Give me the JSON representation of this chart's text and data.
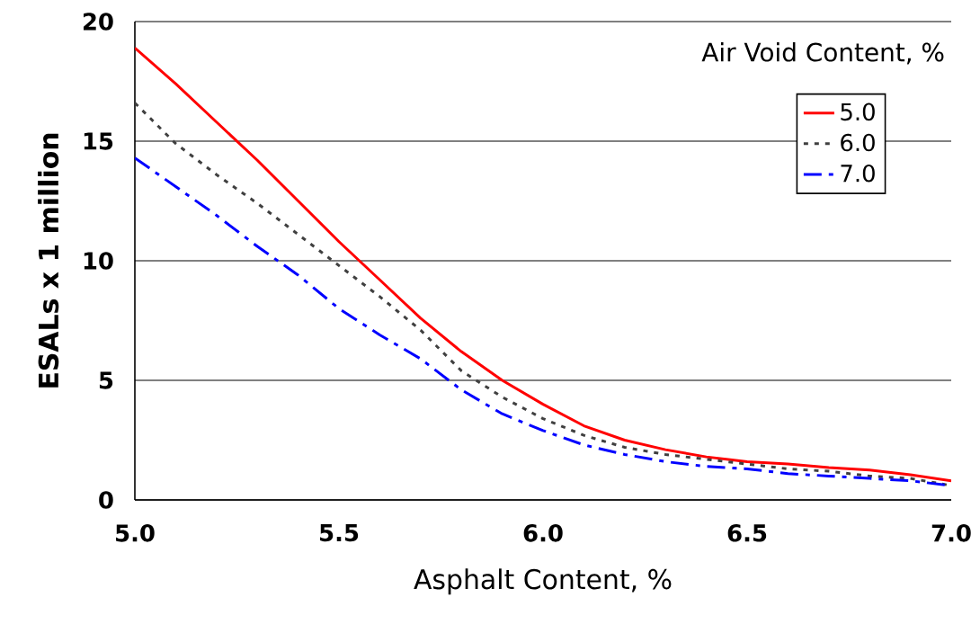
{
  "chart_data": {
    "type": "line",
    "xlabel": "Asphalt Content, %",
    "ylabel": "ESALs x 1 million",
    "legend_title": "Air Void Content, %",
    "x": [
      5.0,
      5.1,
      5.2,
      5.3,
      5.4,
      5.5,
      5.6,
      5.7,
      5.8,
      5.9,
      6.0,
      6.1,
      6.2,
      6.3,
      6.4,
      6.5,
      6.6,
      6.7,
      6.8,
      6.9,
      7.0
    ],
    "series": [
      {
        "name": "5.0",
        "color": "#ff0000",
        "line_style": "solid",
        "values": [
          18.9,
          17.4,
          15.8,
          14.2,
          12.5,
          10.8,
          9.2,
          7.6,
          6.2,
          5.0,
          4.0,
          3.1,
          2.5,
          2.1,
          1.8,
          1.6,
          1.5,
          1.35,
          1.25,
          1.05,
          0.8
        ]
      },
      {
        "name": "6.0",
        "color": "#404040",
        "line_style": "dotted",
        "values": [
          16.6,
          14.9,
          13.6,
          12.4,
          11.1,
          9.8,
          8.5,
          7.1,
          5.4,
          4.3,
          3.4,
          2.7,
          2.2,
          1.9,
          1.7,
          1.5,
          1.3,
          1.2,
          1.0,
          0.9,
          0.6
        ]
      },
      {
        "name": "7.0",
        "color": "#0000ff",
        "line_style": "dashed",
        "values": [
          14.3,
          13.1,
          11.9,
          10.6,
          9.4,
          8.0,
          6.9,
          5.9,
          4.6,
          3.6,
          2.9,
          2.3,
          1.9,
          1.6,
          1.4,
          1.3,
          1.1,
          1.0,
          0.9,
          0.8,
          0.6
        ]
      }
    ],
    "xlim": [
      5.0,
      7.0
    ],
    "xticks": [
      {
        "value": 5.0,
        "label": "5.0"
      },
      {
        "value": 5.5,
        "label": "5.5"
      },
      {
        "value": 6.0,
        "label": "6.0"
      },
      {
        "value": 6.5,
        "label": "6.5"
      },
      {
        "value": 7.0,
        "label": "7.0"
      }
    ],
    "ylim": [
      0,
      20
    ],
    "yticks": [
      0,
      5,
      10,
      15,
      20
    ],
    "grid": "y",
    "legend": "top right",
    "marker": "none"
  }
}
